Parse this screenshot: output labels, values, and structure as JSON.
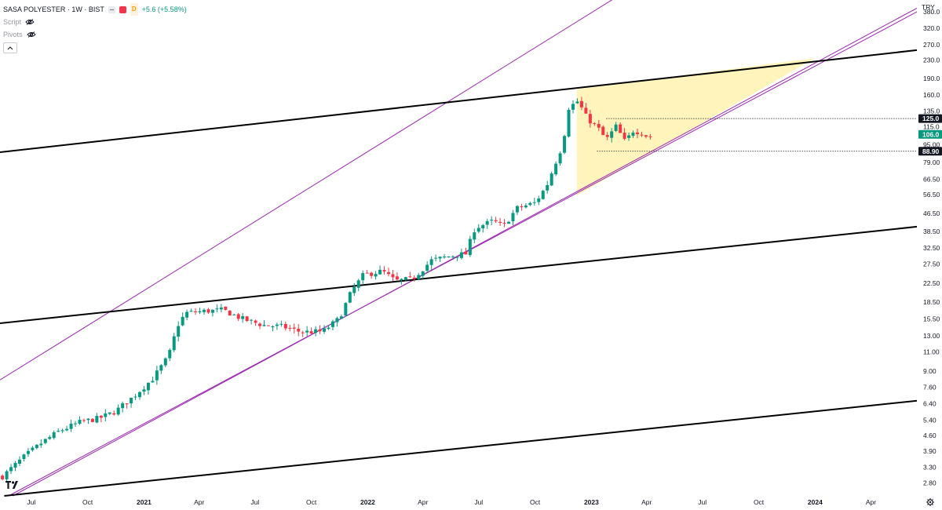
{
  "legend": {
    "symbol_title": "SASA POLYESTER · 1W · BIST",
    "change": "+5.6 (+5.58%)",
    "data_badge": "D",
    "script_label": "Script",
    "pivots_label": "Pivots",
    "collapse_icon": "chevron-up-icon",
    "colors": {
      "up": "#089981",
      "down": "#f23645",
      "channel": "#9c27b0",
      "trend": "#000000",
      "triangle": "#fff3b0"
    }
  },
  "currency": "TRY",
  "logo_text": "TV",
  "chart_data": {
    "type": "candlestick",
    "title": "SASA POLYESTER · 1W · BIST",
    "scale": "log",
    "ylim": [
      2.45,
      430
    ],
    "xlim": [
      "2020-05-11",
      "2024-06-15"
    ],
    "price_axis_labels": [
      "380.0",
      "320.0",
      "270.0",
      "230.0",
      "190.0",
      "160.0",
      "135.0",
      "115.0",
      "95.00",
      "79.00",
      "66.50",
      "56.50",
      "46.50",
      "38.50",
      "32.50",
      "27.50",
      "22.50",
      "18.50",
      "15.50",
      "13.00",
      "11.00",
      "9.00",
      "7.60",
      "6.40",
      "5.40",
      "4.60",
      "3.90",
      "3.30",
      "2.80"
    ],
    "price_axis_values": [
      380,
      320,
      270,
      230,
      190,
      160,
      135,
      115,
      95,
      79,
      66.5,
      56.5,
      46.5,
      38.5,
      32.5,
      27.5,
      22.5,
      18.5,
      15.5,
      13,
      11,
      9,
      7.6,
      6.4,
      5.4,
      4.6,
      3.9,
      3.3,
      2.8
    ],
    "time_axis": [
      {
        "label": "Jul",
        "date": "2020-07-01"
      },
      {
        "label": "Oct",
        "date": "2020-10-01"
      },
      {
        "label": "2021",
        "date": "2021-01-01"
      },
      {
        "label": "Apr",
        "date": "2021-04-01"
      },
      {
        "label": "Jul",
        "date": "2021-07-01"
      },
      {
        "label": "Oct",
        "date": "2021-10-01"
      },
      {
        "label": "2022",
        "date": "2022-01-01"
      },
      {
        "label": "Apr",
        "date": "2022-04-01"
      },
      {
        "label": "Jul",
        "date": "2022-07-01"
      },
      {
        "label": "Oct",
        "date": "2022-10-01"
      },
      {
        "label": "2023",
        "date": "2023-01-01"
      },
      {
        "label": "Apr",
        "date": "2023-04-01"
      },
      {
        "label": "Jul",
        "date": "2023-07-01"
      },
      {
        "label": "Oct",
        "date": "2023-10-01"
      },
      {
        "label": "2024",
        "date": "2024-01-01"
      },
      {
        "label": "Apr",
        "date": "2024-04-01"
      }
    ],
    "price_tags": [
      {
        "label": "125.0",
        "value": 125,
        "style": "dark"
      },
      {
        "label": "106.0",
        "value": 106,
        "style": "green"
      },
      {
        "label": "88.90",
        "value": 88.9,
        "style": "dark"
      }
    ],
    "close_path": [
      {
        "date": "2020-05-15",
        "price": 3.0
      },
      {
        "date": "2020-06-20",
        "price": 3.7
      },
      {
        "date": "2020-07-20",
        "price": 4.3
      },
      {
        "date": "2020-08-15",
        "price": 4.8
      },
      {
        "date": "2020-09-20",
        "price": 5.3
      },
      {
        "date": "2020-10-20",
        "price": 5.5
      },
      {
        "date": "2020-11-15",
        "price": 5.9
      },
      {
        "date": "2020-12-15",
        "price": 6.9
      },
      {
        "date": "2021-01-15",
        "price": 8.3
      },
      {
        "date": "2021-02-10",
        "price": 10.5
      },
      {
        "date": "2021-02-25",
        "price": 14.5
      },
      {
        "date": "2021-03-10",
        "price": 16.5
      },
      {
        "date": "2021-04-10",
        "price": 16.8
      },
      {
        "date": "2021-05-10",
        "price": 17.0
      },
      {
        "date": "2021-06-10",
        "price": 15.5
      },
      {
        "date": "2021-07-15",
        "price": 14.5
      },
      {
        "date": "2021-08-15",
        "price": 14.3
      },
      {
        "date": "2021-09-15",
        "price": 13.5
      },
      {
        "date": "2021-10-20",
        "price": 13.6
      },
      {
        "date": "2021-11-15",
        "price": 15.5
      },
      {
        "date": "2021-12-05",
        "price": 20.5
      },
      {
        "date": "2021-12-25",
        "price": 24.5
      },
      {
        "date": "2022-01-25",
        "price": 25.5
      },
      {
        "date": "2022-02-15",
        "price": 23.0
      },
      {
        "date": "2022-03-15",
        "price": 23.5
      },
      {
        "date": "2022-04-15",
        "price": 28.5
      },
      {
        "date": "2022-05-20",
        "price": 30.0
      },
      {
        "date": "2022-06-10",
        "price": 30.5
      },
      {
        "date": "2022-06-25",
        "price": 40.0
      },
      {
        "date": "2022-07-25",
        "price": 43.0
      },
      {
        "date": "2022-08-10",
        "price": 40.5
      },
      {
        "date": "2022-09-01",
        "price": 49.0
      },
      {
        "date": "2022-10-01",
        "price": 52.0
      },
      {
        "date": "2022-10-20",
        "price": 62.0
      },
      {
        "date": "2022-11-01",
        "price": 76.0
      },
      {
        "date": "2022-11-15",
        "price": 95.0
      },
      {
        "date": "2022-11-25",
        "price": 140.0
      },
      {
        "date": "2022-12-10",
        "price": 150.0
      },
      {
        "date": "2022-12-25",
        "price": 125.0
      },
      {
        "date": "2023-01-10",
        "price": 115.0
      },
      {
        "date": "2023-01-25",
        "price": 100.0
      },
      {
        "date": "2023-02-10",
        "price": 115.0
      },
      {
        "date": "2023-02-25",
        "price": 98.0
      },
      {
        "date": "2023-03-10",
        "price": 110.0
      },
      {
        "date": "2023-03-25",
        "price": 108.0
      },
      {
        "date": "2023-04-05",
        "price": 102.0
      },
      {
        "date": "2023-04-10",
        "price": 106.0
      }
    ],
    "drawings": {
      "trend_lines": [
        {
          "from": {
            "date": "2020-05-11",
            "price": 88
          },
          "to": {
            "date": "2024-06-15",
            "price": 255
          }
        },
        {
          "from": {
            "date": "2020-05-11",
            "price": 14.8
          },
          "to": {
            "date": "2024-06-15",
            "price": 40.5
          }
        },
        {
          "from": {
            "date": "2020-05-18",
            "price": 2.45
          },
          "to": {
            "date": "2024-06-15",
            "price": 6.6
          }
        }
      ],
      "channel_lines": [
        {
          "from": {
            "date": "2020-05-11",
            "price": 8.2
          },
          "to": {
            "date": "2023-10-20",
            "price": 1200
          }
        },
        {
          "from": {
            "date": "2020-05-25",
            "price": 2.45
          },
          "to": {
            "date": "2024-06-15",
            "price": 380
          }
        },
        {
          "from": {
            "date": "2020-06-01",
            "price": 2.45
          },
          "to": {
            "date": "2024-06-15",
            "price": 395
          }
        }
      ],
      "triangle": [
        {
          "date": "2022-12-08",
          "price": 170
        },
        {
          "date": "2022-12-08",
          "price": 56
        },
        {
          "date": "2024-01-01",
          "price": 235
        }
      ],
      "horizontal_levels": [
        {
          "from": "2023-01-25",
          "price": 125
        },
        {
          "from": "2023-01-10",
          "price": 88.9
        }
      ]
    }
  }
}
